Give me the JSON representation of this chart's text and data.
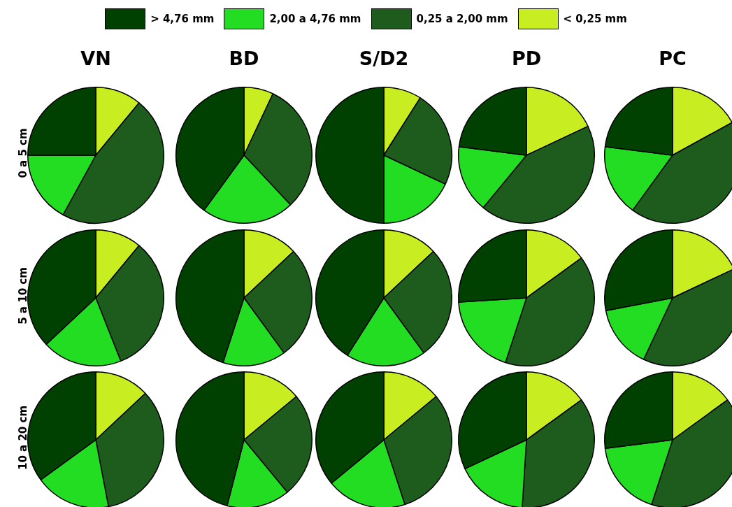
{
  "chart_data": [
    {
      "type": "pie",
      "title": "VN",
      "ylabel": "0 a 5 cm",
      "legend": "top",
      "categories": [
        "< 0,25 mm",
        "0,25 a 2,00 mm",
        "2,00 a 4,76 mm",
        "> 4,76 mm"
      ],
      "values": [
        11,
        47,
        17,
        25
      ],
      "colors": [
        "#c8ee22",
        "#1e5c1e",
        "#22dd22",
        "#004000"
      ]
    },
    {
      "type": "pie",
      "title": "BD",
      "categories": [
        null,
        null,
        null,
        null
      ],
      "values": [
        7,
        31,
        22,
        40
      ],
      "colors": [
        "#c8ee22",
        "#1e5c1e",
        "#22dd22",
        "#004000"
      ]
    },
    {
      "type": "pie",
      "title": "S/D2",
      "categories": [
        null,
        null,
        null,
        null
      ],
      "values": [
        9,
        23,
        18,
        50
      ],
      "colors": [
        "#c8ee22",
        "#1e5c1e",
        "#22dd22",
        "#004000"
      ]
    },
    {
      "type": "pie",
      "title": "PD",
      "categories": [
        null,
        null,
        null,
        null
      ],
      "values": [
        18,
        43,
        16,
        23
      ],
      "colors": [
        "#c8ee22",
        "#1e5c1e",
        "#22dd22",
        "#004000"
      ]
    },
    {
      "type": "pie",
      "title": "PC",
      "categories": [
        null,
        null,
        null,
        null
      ],
      "values": [
        17,
        43,
        17,
        23
      ],
      "colors": [
        "#c8ee22",
        "#1e5c1e",
        "#22dd22",
        "#004000"
      ]
    },
    {
      "type": "pie",
      "ylabel": "5 a 10 cm",
      "categories": [
        null,
        null,
        null,
        null
      ],
      "values": [
        11,
        33,
        19,
        37
      ],
      "colors": [
        "#c8ee22",
        "#1e5c1e",
        "#22dd22",
        "#004000"
      ]
    },
    {
      "type": "pie",
      "categories": [
        null,
        null,
        null,
        null
      ],
      "values": [
        13,
        27,
        15,
        45
      ],
      "colors": [
        "#c8ee22",
        "#1e5c1e",
        "#22dd22",
        "#004000"
      ]
    },
    {
      "type": "pie",
      "categories": [
        null,
        null,
        null,
        null
      ],
      "values": [
        13,
        27,
        19,
        41
      ],
      "colors": [
        "#c8ee22",
        "#1e5c1e",
        "#22dd22",
        "#004000"
      ]
    },
    {
      "type": "pie",
      "categories": [
        null,
        null,
        null,
        null
      ],
      "values": [
        15,
        40,
        19,
        26
      ],
      "colors": [
        "#c8ee22",
        "#1e5c1e",
        "#22dd22",
        "#004000"
      ]
    },
    {
      "type": "pie",
      "categories": [
        null,
        null,
        null,
        null
      ],
      "values": [
        18,
        39,
        15,
        28
      ],
      "colors": [
        "#c8ee22",
        "#1e5c1e",
        "#22dd22",
        "#004000"
      ]
    },
    {
      "type": "pie",
      "ylabel": "10 a 20 cm",
      "categories": [
        null,
        null,
        null,
        null
      ],
      "values": [
        13,
        34,
        18,
        35
      ],
      "colors": [
        "#c8ee22",
        "#1e5c1e",
        "#22dd22",
        "#004000"
      ]
    },
    {
      "type": "pie",
      "categories": [
        null,
        null,
        null,
        null
      ],
      "values": [
        14,
        25,
        15,
        46
      ],
      "colors": [
        "#c8ee22",
        "#1e5c1e",
        "#22dd22",
        "#004000"
      ]
    },
    {
      "type": "pie",
      "categories": [
        null,
        null,
        null,
        null
      ],
      "values": [
        14,
        31,
        19,
        36
      ],
      "colors": [
        "#c8ee22",
        "#1e5c1e",
        "#22dd22",
        "#004000"
      ]
    },
    {
      "type": "pie",
      "categories": [
        null,
        null,
        null,
        null
      ],
      "values": [
        15,
        36,
        17,
        32
      ],
      "colors": [
        "#c8ee22",
        "#1e5c1e",
        "#22dd22",
        "#004000"
      ]
    },
    {
      "type": "pie",
      "categories": [
        null,
        null,
        null,
        null
      ],
      "values": [
        15,
        40,
        18,
        27
      ],
      "colors": [
        "#c8ee22",
        "#1e5c1e",
        "#22dd22",
        "#004000"
      ]
    }
  ]
}
